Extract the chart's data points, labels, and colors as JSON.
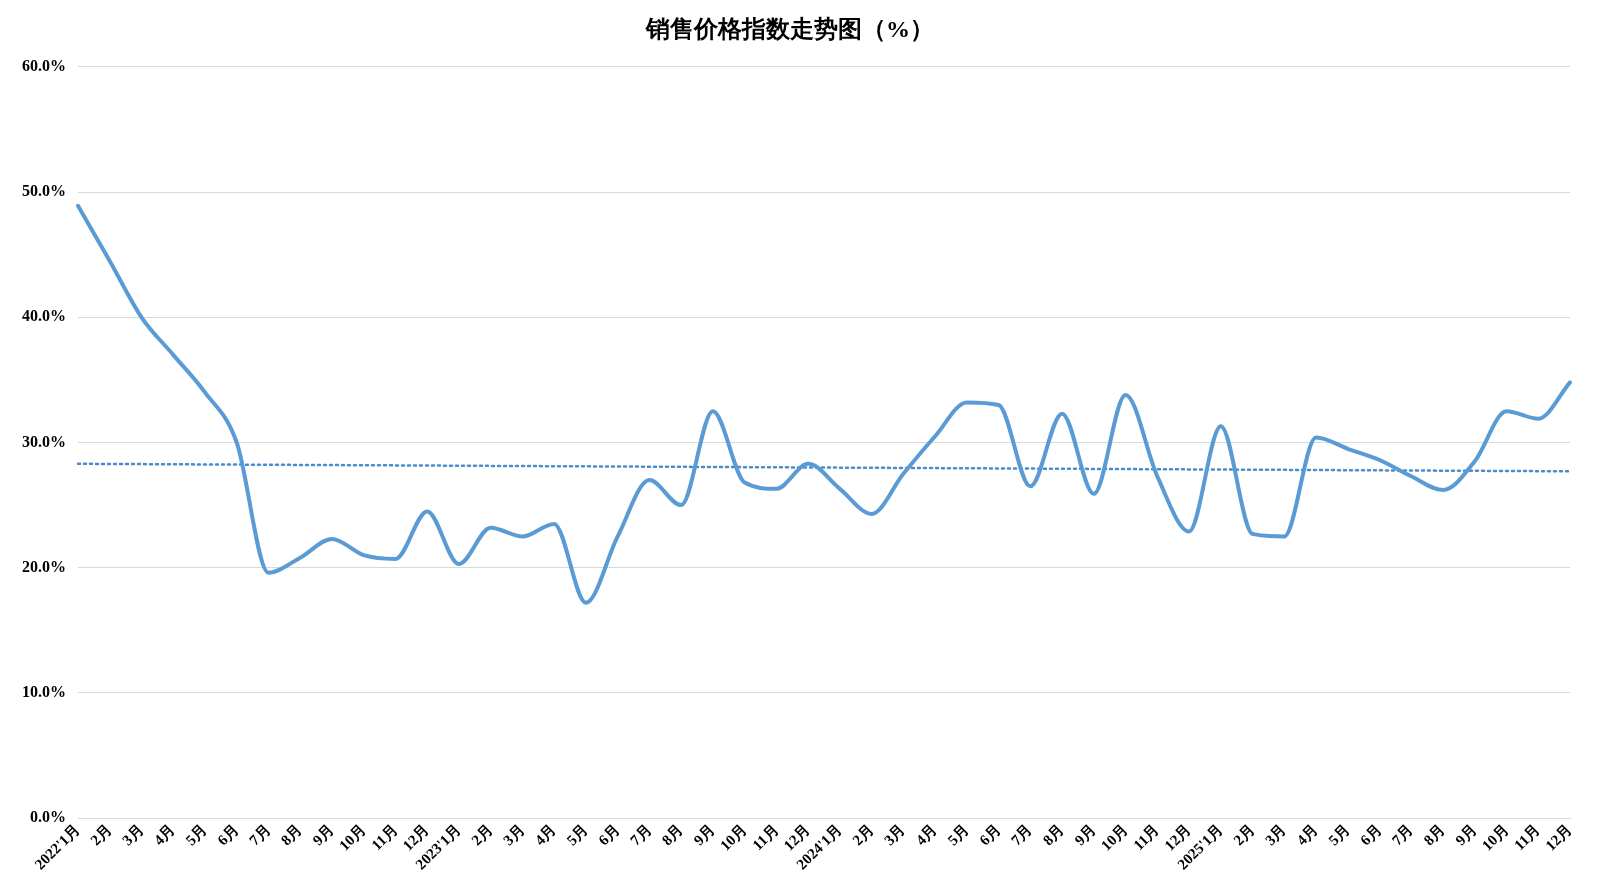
{
  "chart_data": {
    "type": "line",
    "title": "销售价格指数走势图（%）",
    "categories": [
      "2022'1月",
      "2月",
      "3月",
      "4月",
      "5月",
      "6月",
      "7月",
      "8月",
      "9月",
      "10月",
      "11月",
      "12月",
      "2023'1月",
      "2月",
      "3月",
      "4月",
      "5月",
      "6月",
      "7月",
      "8月",
      "9月",
      "10月",
      "11月",
      "12月",
      "2024'1月",
      "2月",
      "3月",
      "4月",
      "5月",
      "6月",
      "7月",
      "8月",
      "9月",
      "10月",
      "11月",
      "12月",
      "2025'1月",
      "2月",
      "3月",
      "4月",
      "5月",
      "6月",
      "7月",
      "8月",
      "9月",
      "10月",
      "11月",
      "12月"
    ],
    "series": [
      {
        "color": "#5b9bd5",
        "line_style": "solid",
        "values": [
          48.9,
          44.5,
          40,
          37,
          34,
          30,
          19.6,
          20.8,
          22.3,
          21,
          20.7,
          24.5,
          20.3,
          23.2,
          22.5,
          23.5,
          17.2,
          22.5,
          27,
          25,
          32.5,
          26.8,
          26.3,
          28.3,
          26.3,
          24.3,
          27.5,
          30.5,
          33.2,
          33,
          26.5,
          32.3,
          25.9,
          33.8,
          27.3,
          22.9,
          31.3,
          22.7,
          22.5,
          30.4,
          29.5,
          28.6,
          27.3,
          26.2,
          28.5,
          32.5,
          31.9,
          34.8
        ]
      },
      {
        "color": "#4a8bc9",
        "line_style": "dotted",
        "values": [
          28.3,
          null,
          null,
          null,
          null,
          null,
          null,
          null,
          null,
          null,
          null,
          null,
          null,
          null,
          null,
          null,
          null,
          null,
          null,
          null,
          null,
          null,
          null,
          null,
          null,
          null,
          null,
          null,
          null,
          null,
          null,
          null,
          null,
          null,
          null,
          null,
          null,
          null,
          null,
          null,
          null,
          null,
          null,
          null,
          null,
          null,
          null,
          27.7
        ]
      }
    ],
    "ylim": [
      0,
      60
    ],
    "yticks": [
      {
        "value": 0,
        "label": "0.0%"
      },
      {
        "value": 10,
        "label": "10.0%"
      },
      {
        "value": 20,
        "label": "20.0%"
      },
      {
        "value": 30,
        "label": "30.0%"
      },
      {
        "value": 40,
        "label": "40.0%"
      },
      {
        "value": 50,
        "label": "50.0%"
      },
      {
        "value": 60,
        "label": "60.0%"
      }
    ],
    "grid": "y",
    "legend": false,
    "marker": "none"
  }
}
